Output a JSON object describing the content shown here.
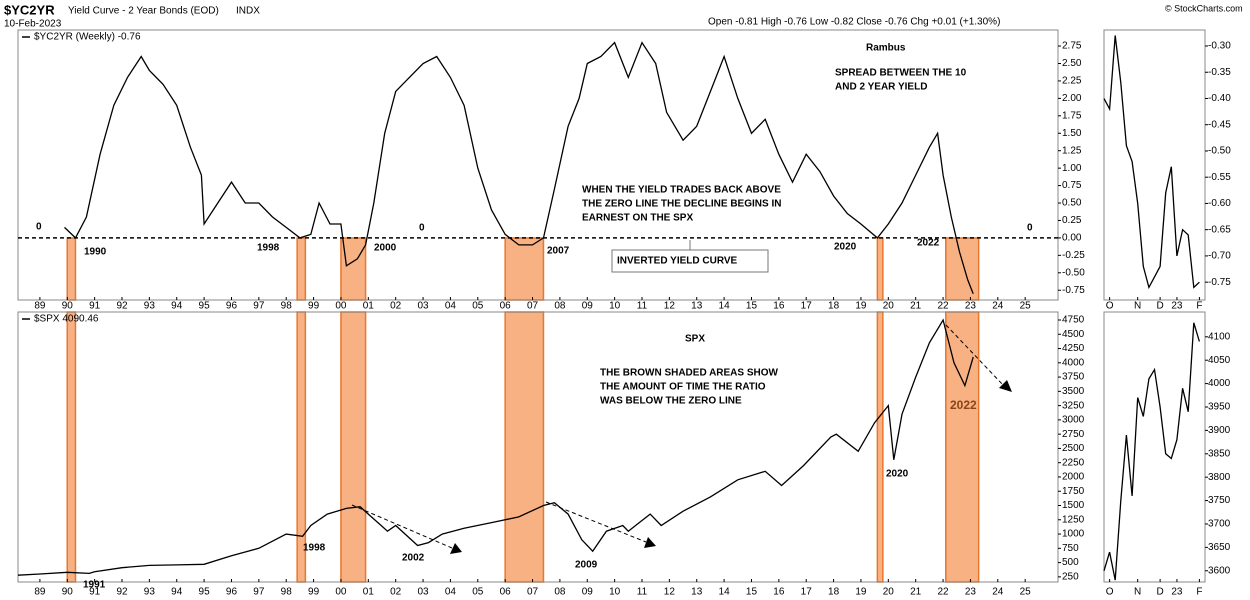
{
  "header": {
    "symbol": "$YC2YR",
    "title": "Yield Curve - 2 Year Bonds (EOD)",
    "exchange": "INDX",
    "date": "10-Feb-2023",
    "quote": "Open -0.81  High -0.76  Low -0.82  Close -0.76  Chg +0.01 (+1.30%)",
    "logo": "© StockCharts.com"
  },
  "chart_data": [
    {
      "type": "line",
      "legend": "$YC2YR (Weekly) -0.76",
      "color": "#000000",
      "x": [
        1989.9,
        1990.3,
        1990.7,
        1991.2,
        1991.7,
        1992.2,
        1992.7,
        1993.0,
        1993.5,
        1994.0,
        1994.5,
        1994.9,
        1995.0,
        1995.5,
        1996.0,
        1996.5,
        1997.0,
        1997.5,
        1998.0,
        1998.5,
        1998.9,
        1999.2,
        1999.6,
        2000.0,
        2000.2,
        2000.6,
        2000.9,
        2001.2,
        2001.6,
        2002.0,
        2002.5,
        2003.0,
        2003.5,
        2004.0,
        2004.5,
        2005.0,
        2005.5,
        2006.0,
        2006.5,
        2007.0,
        2007.4,
        2007.8,
        2008.3,
        2008.7,
        2009.0,
        2009.5,
        2010.0,
        2010.5,
        2011.0,
        2011.5,
        2011.9,
        2012.5,
        2013.0,
        2013.6,
        2014.0,
        2014.5,
        2015.0,
        2015.5,
        2016.0,
        2016.5,
        2017.0,
        2017.5,
        2018.0,
        2018.5,
        2019.0,
        2019.6,
        2020.0,
        2020.5,
        2021.0,
        2021.5,
        2021.8,
        2022.0,
        2022.3,
        2022.6,
        2022.9,
        2023.1
      ],
      "values": [
        0.15,
        0.0,
        0.3,
        1.2,
        1.9,
        2.3,
        2.6,
        2.4,
        2.2,
        1.9,
        1.3,
        0.9,
        0.2,
        0.5,
        0.8,
        0.5,
        0.5,
        0.3,
        0.15,
        0.0,
        0.05,
        0.5,
        0.2,
        0.2,
        -0.4,
        -0.3,
        -0.1,
        0.5,
        1.5,
        2.1,
        2.3,
        2.5,
        2.6,
        2.3,
        1.9,
        1.0,
        0.4,
        0.05,
        -0.1,
        -0.1,
        0.0,
        0.7,
        1.6,
        2.0,
        2.5,
        2.6,
        2.8,
        2.3,
        2.8,
        2.5,
        1.8,
        1.4,
        1.6,
        2.2,
        2.6,
        2.0,
        1.5,
        1.7,
        1.2,
        0.8,
        1.2,
        0.95,
        0.6,
        0.35,
        0.2,
        0.0,
        0.2,
        0.5,
        0.9,
        1.3,
        1.5,
        0.9,
        0.3,
        -0.2,
        -0.6,
        -0.8
      ],
      "bands": [
        [
          1990.0,
          1990.3
        ],
        [
          1998.4,
          1998.7
        ],
        [
          2000.0,
          2000.9
        ],
        [
          2006.0,
          2007.4
        ],
        [
          2019.6,
          2019.8
        ],
        [
          2022.1,
          2023.3
        ]
      ],
      "zero_line": 0,
      "xlim": [
        1988.2,
        2026.2
      ],
      "ylim": [
        -0.89,
        2.98
      ],
      "xticks": [
        {
          "value": 1989,
          "label": "89"
        },
        {
          "value": 1990,
          "label": "90"
        },
        {
          "value": 1991,
          "label": "91"
        },
        {
          "value": 1992,
          "label": "92"
        },
        {
          "value": 1993,
          "label": "93"
        },
        {
          "value": 1994,
          "label": "94"
        },
        {
          "value": 1995,
          "label": "95"
        },
        {
          "value": 1996,
          "label": "96"
        },
        {
          "value": 1997,
          "label": "97"
        },
        {
          "value": 1998,
          "label": "98"
        },
        {
          "value": 1999,
          "label": "99"
        },
        {
          "value": 2000,
          "label": "00"
        },
        {
          "value": 2001,
          "label": "01"
        },
        {
          "value": 2002,
          "label": "02"
        },
        {
          "value": 2003,
          "label": "03"
        },
        {
          "value": 2004,
          "label": "04"
        },
        {
          "value": 2005,
          "label": "05"
        },
        {
          "value": 2006,
          "label": "06"
        },
        {
          "value": 2007,
          "label": "07"
        },
        {
          "value": 2008,
          "label": "08"
        },
        {
          "value": 2009,
          "label": "09"
        },
        {
          "value": 2010,
          "label": "10"
        },
        {
          "value": 2011,
          "label": "11"
        },
        {
          "value": 2012,
          "label": "12"
        },
        {
          "value": 2013,
          "label": "13"
        },
        {
          "value": 2014,
          "label": "14"
        },
        {
          "value": 2015,
          "label": "15"
        },
        {
          "value": 2016,
          "label": "16"
        },
        {
          "value": 2017,
          "label": "17"
        },
        {
          "value": 2018,
          "label": "18"
        },
        {
          "value": 2019,
          "label": "19"
        },
        {
          "value": 2020,
          "label": "20"
        },
        {
          "value": 2021,
          "label": "21"
        },
        {
          "value": 2022,
          "label": "22"
        },
        {
          "value": 2023,
          "label": "23"
        },
        {
          "value": 2024,
          "label": "24"
        },
        {
          "value": 2025,
          "label": "25"
        }
      ],
      "yticks": [
        2.75,
        {
          "value": 2.5,
          "label": "2.50"
        },
        2.25,
        {
          "value": 2,
          "label": "2.00"
        },
        1.75,
        {
          "value": 1.5,
          "label": "1.50"
        },
        1.25,
        {
          "value": 1,
          "label": "1.00"
        },
        0.75,
        {
          "value": 0.5,
          "label": "0.50"
        },
        0.25,
        {
          "value": 0,
          "label": "0.00"
        },
        -0.25,
        {
          "value": -0.5,
          "label": "-0.50"
        },
        -0.75
      ],
      "annotations": [
        "0",
        "1990",
        "1998",
        "2000",
        "0",
        "2007",
        "2020",
        "2022",
        "0",
        "Rambus",
        "SPREAD BETWEEN THE 10",
        "AND 2 YEAR YIELD",
        "WHEN THE YIELD TRADES BACK ABOVE",
        "THE ZERO LINE THE DECLINE BEGINS IN",
        "EARNEST ON THE SPX",
        "INVERTED YIELD CURVE"
      ]
    },
    {
      "type": "line",
      "legend": "$SPX 4090.46",
      "color": "#000000",
      "x": [
        1988.2,
        1989.0,
        1990.0,
        1990.8,
        1991.0,
        1992.0,
        1993.0,
        1994.0,
        1995.0,
        1996.0,
        1997.0,
        1998.0,
        1998.6,
        1998.9,
        1999.5,
        2000.2,
        2000.7,
        2001.0,
        2001.7,
        2002.0,
        2002.8,
        2003.2,
        2003.7,
        2004.5,
        2005.5,
        2006.5,
        2007.4,
        2007.8,
        2008.3,
        2008.8,
        2009.2,
        2009.7,
        2010.3,
        2010.5,
        2011.3,
        2011.7,
        2012.5,
        2013.5,
        2014.5,
        2015.5,
        2016.1,
        2016.9,
        2017.9,
        2018.1,
        2018.9,
        2019.5,
        2020.0,
        2020.2,
        2020.5,
        2021.0,
        2021.5,
        2022.0,
        2022.4,
        2022.8,
        2023.1
      ],
      "values": [
        280,
        300,
        330,
        310,
        340,
        410,
        450,
        460,
        470,
        620,
        750,
        1000,
        960,
        1150,
        1350,
        1450,
        1480,
        1350,
        1050,
        1150,
        800,
        850,
        1000,
        1100,
        1200,
        1300,
        1500,
        1550,
        1350,
        900,
        700,
        1050,
        1150,
        1050,
        1350,
        1150,
        1400,
        1650,
        1950,
        2100,
        1850,
        2200,
        2700,
        2750,
        2450,
        2950,
        3250,
        2300,
        3100,
        3750,
        4350,
        4750,
        4000,
        3600,
        4100
      ],
      "xlim": [
        1988.2,
        2026.2
      ],
      "ylim": [
        160,
        4890
      ],
      "xticks": [
        {
          "value": 1989,
          "label": "89"
        },
        {
          "value": 1990,
          "label": "90"
        },
        {
          "value": 1991,
          "label": "91"
        },
        {
          "value": 1992,
          "label": "92"
        },
        {
          "value": 1993,
          "label": "93"
        },
        {
          "value": 1994,
          "label": "94"
        },
        {
          "value": 1995,
          "label": "95"
        },
        {
          "value": 1996,
          "label": "96"
        },
        {
          "value": 1997,
          "label": "97"
        },
        {
          "value": 1998,
          "label": "98"
        },
        {
          "value": 1999,
          "label": "99"
        },
        {
          "value": 2000,
          "label": "00"
        },
        {
          "value": 2001,
          "label": "01"
        },
        {
          "value": 2002,
          "label": "02"
        },
        {
          "value": 2003,
          "label": "03"
        },
        {
          "value": 2004,
          "label": "04"
        },
        {
          "value": 2005,
          "label": "05"
        },
        {
          "value": 2006,
          "label": "06"
        },
        {
          "value": 2007,
          "label": "07"
        },
        {
          "value": 2008,
          "label": "08"
        },
        {
          "value": 2009,
          "label": "09"
        },
        {
          "value": 2010,
          "label": "10"
        },
        {
          "value": 2011,
          "label": "11"
        },
        {
          "value": 2012,
          "label": "12"
        },
        {
          "value": 2013,
          "label": "13"
        },
        {
          "value": 2014,
          "label": "14"
        },
        {
          "value": 2015,
          "label": "15"
        },
        {
          "value": 2016,
          "label": "16"
        },
        {
          "value": 2017,
          "label": "17"
        },
        {
          "value": 2018,
          "label": "18"
        },
        {
          "value": 2019,
          "label": "19"
        },
        {
          "value": 2020,
          "label": "20"
        },
        {
          "value": 2021,
          "label": "21"
        },
        {
          "value": 2022,
          "label": "22"
        },
        {
          "value": 2023,
          "label": "23"
        },
        {
          "value": 2024,
          "label": "24"
        },
        {
          "value": 2025,
          "label": "25"
        }
      ],
      "yticks": [
        4750,
        4500,
        4250,
        4000,
        3750,
        3500,
        3250,
        3000,
        2750,
        2500,
        2250,
        2000,
        1750,
        1500,
        1250,
        1000,
        750,
        500,
        250
      ],
      "annotations": [
        "SPX",
        "THE BROWN SHADED AREAS SHOW",
        "THE AMOUNT OF TIME THE RATIO",
        "WAS BELOW THE ZERO LINE",
        "1991",
        "1998",
        "2002",
        "2009",
        "2020",
        "2022"
      ]
    },
    {
      "type": "line",
      "color": "#000000",
      "x": [
        0,
        1,
        2,
        3,
        4,
        5,
        6,
        7,
        8,
        9,
        10,
        11,
        12,
        13,
        14,
        15,
        16,
        17
      ],
      "values": [
        -0.4,
        -0.42,
        -0.28,
        -0.37,
        -0.49,
        -0.52,
        -0.6,
        -0.72,
        -0.76,
        -0.74,
        -0.72,
        -0.58,
        -0.53,
        -0.7,
        -0.65,
        -0.66,
        -0.76,
        -0.75
      ],
      "xlim": [
        0,
        18
      ],
      "ylim": [
        -0.784,
        -0.2695
      ],
      "xticks": [
        {
          "value": 1,
          "label": "O"
        },
        {
          "value": 6,
          "label": "N"
        },
        {
          "value": 10,
          "label": "D"
        },
        {
          "value": 13,
          "label": "23"
        },
        {
          "value": 17,
          "label": "F"
        }
      ],
      "yticks": [
        {
          "value": -0.3,
          "label": "-0.30"
        },
        -0.35,
        {
          "value": -0.4,
          "label": "-0.40"
        },
        -0.45,
        {
          "value": -0.5,
          "label": "-0.50"
        },
        -0.55,
        {
          "value": -0.6,
          "label": "-0.60"
        },
        -0.65,
        {
          "value": -0.7,
          "label": "-0.70"
        },
        -0.75
      ]
    },
    {
      "type": "line",
      "color": "#000000",
      "x": [
        0,
        1,
        2,
        3,
        4,
        5,
        6,
        7,
        8,
        9,
        10,
        11,
        12,
        13,
        14,
        15,
        16,
        17
      ],
      "values": [
        3600,
        3640,
        3580,
        3750,
        3890,
        3760,
        3970,
        3930,
        4010,
        4030,
        3950,
        3850,
        3840,
        3880,
        3990,
        3940,
        4130,
        4090
      ],
      "xlim": [
        0,
        18
      ],
      "ylim": [
        3576,
        4153
      ],
      "xticks": [
        {
          "value": 1,
          "label": "O"
        },
        {
          "value": 6,
          "label": "N"
        },
        {
          "value": 10,
          "label": "D"
        },
        {
          "value": 13,
          "label": "23"
        },
        {
          "value": 17,
          "label": "F"
        }
      ],
      "yticks": [
        4100,
        4050,
        4000,
        3950,
        3900,
        3850,
        3800,
        3750,
        3700,
        3650,
        3600
      ]
    }
  ]
}
